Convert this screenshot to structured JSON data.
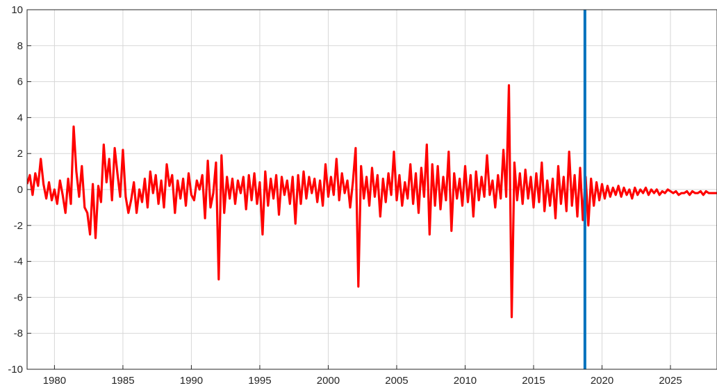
{
  "chart_data": {
    "type": "line",
    "title": "",
    "xlabel": "",
    "ylabel": "",
    "xlim": [
      1978.0,
      2028.4
    ],
    "ylim": [
      -10,
      10
    ],
    "x_ticks": [
      1980,
      1985,
      1990,
      1995,
      2000,
      2005,
      2010,
      2015,
      2020,
      2025
    ],
    "y_ticks": [
      -10,
      -8,
      -6,
      -4,
      -2,
      0,
      2,
      4,
      6,
      8,
      10
    ],
    "grid": true,
    "series": [
      {
        "color": "#ff0000",
        "points": [
          [
            1978.0,
            0.3
          ],
          [
            1978.2,
            0.8
          ],
          [
            1978.4,
            -0.3
          ],
          [
            1978.6,
            0.9
          ],
          [
            1978.8,
            0.2
          ],
          [
            1979.0,
            1.7
          ],
          [
            1979.2,
            0.3
          ],
          [
            1979.4,
            -0.5
          ],
          [
            1979.6,
            0.4
          ],
          [
            1979.8,
            -0.6
          ],
          [
            1980.0,
            0.0
          ],
          [
            1980.2,
            -0.8
          ],
          [
            1980.4,
            0.5
          ],
          [
            1980.6,
            -0.3
          ],
          [
            1980.8,
            -1.3
          ],
          [
            1981.0,
            0.6
          ],
          [
            1981.2,
            -0.8
          ],
          [
            1981.4,
            3.5
          ],
          [
            1981.6,
            1.0
          ],
          [
            1981.8,
            -0.4
          ],
          [
            1982.0,
            1.3
          ],
          [
            1982.2,
            -1.0
          ],
          [
            1982.4,
            -1.3
          ],
          [
            1982.6,
            -2.5
          ],
          [
            1982.8,
            0.3
          ],
          [
            1983.0,
            -2.7
          ],
          [
            1983.2,
            0.2
          ],
          [
            1983.4,
            -0.7
          ],
          [
            1983.6,
            2.5
          ],
          [
            1983.8,
            0.4
          ],
          [
            1984.0,
            1.7
          ],
          [
            1984.2,
            -0.6
          ],
          [
            1984.4,
            2.3
          ],
          [
            1984.6,
            0.9
          ],
          [
            1984.8,
            -0.4
          ],
          [
            1985.0,
            2.2
          ],
          [
            1985.2,
            -0.4
          ],
          [
            1985.4,
            -1.3
          ],
          [
            1985.6,
            -0.6
          ],
          [
            1985.8,
            0.4
          ],
          [
            1986.0,
            -1.3
          ],
          [
            1986.2,
            0.0
          ],
          [
            1986.4,
            -0.7
          ],
          [
            1986.6,
            0.6
          ],
          [
            1986.8,
            -1.0
          ],
          [
            1987.0,
            1.0
          ],
          [
            1987.2,
            -0.2
          ],
          [
            1987.4,
            0.8
          ],
          [
            1987.6,
            -0.8
          ],
          [
            1987.8,
            0.5
          ],
          [
            1988.0,
            -1.0
          ],
          [
            1988.2,
            1.4
          ],
          [
            1988.4,
            0.2
          ],
          [
            1988.6,
            0.8
          ],
          [
            1988.8,
            -1.3
          ],
          [
            1989.0,
            0.5
          ],
          [
            1989.2,
            -0.5
          ],
          [
            1989.4,
            0.6
          ],
          [
            1989.6,
            -0.9
          ],
          [
            1989.8,
            0.9
          ],
          [
            1990.0,
            -0.3
          ],
          [
            1990.2,
            -0.6
          ],
          [
            1990.4,
            0.5
          ],
          [
            1990.6,
            0.0
          ],
          [
            1990.8,
            0.8
          ],
          [
            1991.0,
            -1.6
          ],
          [
            1991.2,
            1.6
          ],
          [
            1991.4,
            -1.0
          ],
          [
            1991.6,
            -0.2
          ],
          [
            1991.8,
            1.5
          ],
          [
            1992.0,
            -5.0
          ],
          [
            1992.2,
            1.9
          ],
          [
            1992.4,
            -1.3
          ],
          [
            1992.6,
            0.7
          ],
          [
            1992.8,
            -0.5
          ],
          [
            1993.0,
            0.6
          ],
          [
            1993.2,
            -0.8
          ],
          [
            1993.4,
            0.5
          ],
          [
            1993.6,
            -0.2
          ],
          [
            1993.8,
            0.7
          ],
          [
            1994.0,
            -1.1
          ],
          [
            1994.2,
            0.8
          ],
          [
            1994.4,
            -0.6
          ],
          [
            1994.6,
            0.9
          ],
          [
            1994.8,
            -0.8
          ],
          [
            1995.0,
            0.4
          ],
          [
            1995.2,
            -2.5
          ],
          [
            1995.4,
            1.0
          ],
          [
            1995.6,
            -0.9
          ],
          [
            1995.8,
            0.6
          ],
          [
            1996.0,
            -0.5
          ],
          [
            1996.2,
            0.8
          ],
          [
            1996.4,
            -1.4
          ],
          [
            1996.6,
            0.7
          ],
          [
            1996.8,
            -0.3
          ],
          [
            1997.0,
            0.5
          ],
          [
            1997.2,
            -0.8
          ],
          [
            1997.4,
            0.7
          ],
          [
            1997.6,
            -1.9
          ],
          [
            1997.8,
            0.8
          ],
          [
            1998.0,
            -0.8
          ],
          [
            1998.2,
            1.0
          ],
          [
            1998.4,
            -0.5
          ],
          [
            1998.6,
            0.7
          ],
          [
            1998.8,
            -0.2
          ],
          [
            1999.0,
            0.6
          ],
          [
            1999.2,
            -0.7
          ],
          [
            1999.4,
            0.5
          ],
          [
            1999.6,
            -0.9
          ],
          [
            1999.8,
            1.4
          ],
          [
            2000.0,
            -0.4
          ],
          [
            2000.2,
            0.7
          ],
          [
            2000.4,
            -0.3
          ],
          [
            2000.6,
            1.7
          ],
          [
            2000.8,
            -0.6
          ],
          [
            2001.0,
            0.9
          ],
          [
            2001.2,
            -0.2
          ],
          [
            2001.4,
            0.5
          ],
          [
            2001.6,
            -1.0
          ],
          [
            2001.8,
            0.4
          ],
          [
            2002.0,
            2.3
          ],
          [
            2002.2,
            -5.4
          ],
          [
            2002.4,
            1.3
          ],
          [
            2002.6,
            -0.5
          ],
          [
            2002.8,
            0.7
          ],
          [
            2003.0,
            -0.9
          ],
          [
            2003.2,
            1.2
          ],
          [
            2003.4,
            -0.4
          ],
          [
            2003.6,
            0.8
          ],
          [
            2003.8,
            -1.5
          ],
          [
            2004.0,
            0.6
          ],
          [
            2004.2,
            -0.7
          ],
          [
            2004.4,
            0.9
          ],
          [
            2004.6,
            -0.3
          ],
          [
            2004.8,
            2.1
          ],
          [
            2005.0,
            -0.6
          ],
          [
            2005.2,
            0.8
          ],
          [
            2005.4,
            -0.9
          ],
          [
            2005.6,
            0.4
          ],
          [
            2005.8,
            -0.5
          ],
          [
            2006.0,
            1.4
          ],
          [
            2006.2,
            -0.8
          ],
          [
            2006.4,
            0.9
          ],
          [
            2006.6,
            -1.3
          ],
          [
            2006.8,
            1.2
          ],
          [
            2007.0,
            -0.4
          ],
          [
            2007.2,
            2.5
          ],
          [
            2007.4,
            -2.5
          ],
          [
            2007.6,
            1.4
          ],
          [
            2007.8,
            -0.9
          ],
          [
            2008.0,
            1.3
          ],
          [
            2008.2,
            -1.1
          ],
          [
            2008.4,
            0.7
          ],
          [
            2008.6,
            -0.6
          ],
          [
            2008.8,
            2.1
          ],
          [
            2009.0,
            -2.3
          ],
          [
            2009.2,
            0.9
          ],
          [
            2009.4,
            -0.5
          ],
          [
            2009.6,
            0.6
          ],
          [
            2009.8,
            -0.9
          ],
          [
            2010.0,
            1.3
          ],
          [
            2010.2,
            -0.7
          ],
          [
            2010.4,
            0.8
          ],
          [
            2010.6,
            -1.5
          ],
          [
            2010.8,
            1.0
          ],
          [
            2011.0,
            -0.6
          ],
          [
            2011.2,
            0.7
          ],
          [
            2011.4,
            -0.4
          ],
          [
            2011.6,
            1.9
          ],
          [
            2011.8,
            -0.3
          ],
          [
            2012.0,
            0.5
          ],
          [
            2012.2,
            -1.0
          ],
          [
            2012.4,
            0.8
          ],
          [
            2012.6,
            -0.5
          ],
          [
            2012.8,
            2.2
          ],
          [
            2013.0,
            -0.4
          ],
          [
            2013.2,
            5.8
          ],
          [
            2013.4,
            -7.1
          ],
          [
            2013.6,
            1.5
          ],
          [
            2013.8,
            -0.6
          ],
          [
            2014.0,
            0.9
          ],
          [
            2014.2,
            -0.8
          ],
          [
            2014.4,
            1.1
          ],
          [
            2014.6,
            -0.5
          ],
          [
            2014.8,
            0.7
          ],
          [
            2015.0,
            -1.0
          ],
          [
            2015.2,
            0.9
          ],
          [
            2015.4,
            -0.7
          ],
          [
            2015.6,
            1.5
          ],
          [
            2015.8,
            -1.2
          ],
          [
            2016.0,
            0.5
          ],
          [
            2016.2,
            -0.9
          ],
          [
            2016.4,
            0.6
          ],
          [
            2016.6,
            -1.6
          ],
          [
            2016.8,
            1.3
          ],
          [
            2017.0,
            -0.8
          ],
          [
            2017.2,
            0.7
          ],
          [
            2017.4,
            -1.2
          ],
          [
            2017.6,
            2.1
          ],
          [
            2017.8,
            -0.9
          ],
          [
            2018.0,
            0.8
          ],
          [
            2018.2,
            -1.5
          ],
          [
            2018.4,
            1.2
          ],
          [
            2018.6,
            -1.7
          ],
          [
            2018.8,
            0.7
          ],
          [
            2019.0,
            -2.0
          ],
          [
            2019.2,
            0.6
          ],
          [
            2019.4,
            -0.9
          ],
          [
            2019.6,
            0.4
          ],
          [
            2019.8,
            -0.6
          ],
          [
            2020.0,
            0.3
          ],
          [
            2020.2,
            -0.5
          ],
          [
            2020.4,
            0.2
          ],
          [
            2020.6,
            -0.4
          ],
          [
            2020.8,
            0.1
          ],
          [
            2021.0,
            -0.3
          ],
          [
            2021.2,
            0.2
          ],
          [
            2021.4,
            -0.4
          ],
          [
            2021.6,
            0.1
          ],
          [
            2021.8,
            -0.3
          ],
          [
            2022.0,
            0.0
          ],
          [
            2022.2,
            -0.5
          ],
          [
            2022.4,
            0.1
          ],
          [
            2022.6,
            -0.3
          ],
          [
            2022.8,
            0.0
          ],
          [
            2023.0,
            -0.2
          ],
          [
            2023.2,
            0.1
          ],
          [
            2023.4,
            -0.3
          ],
          [
            2023.6,
            0.0
          ],
          [
            2023.8,
            -0.2
          ],
          [
            2024.0,
            0.0
          ],
          [
            2024.2,
            -0.3
          ],
          [
            2024.4,
            -0.1
          ],
          [
            2024.6,
            -0.2
          ],
          [
            2024.8,
            0.0
          ],
          [
            2025.0,
            -0.1
          ],
          [
            2025.2,
            -0.2
          ],
          [
            2025.4,
            -0.1
          ],
          [
            2025.6,
            -0.3
          ],
          [
            2025.8,
            -0.2
          ],
          [
            2026.0,
            -0.2
          ],
          [
            2026.2,
            -0.1
          ],
          [
            2026.4,
            -0.3
          ],
          [
            2026.6,
            -0.1
          ],
          [
            2026.8,
            -0.2
          ],
          [
            2027.0,
            -0.2
          ],
          [
            2027.2,
            -0.1
          ],
          [
            2027.4,
            -0.3
          ],
          [
            2027.6,
            -0.1
          ],
          [
            2027.8,
            -0.2
          ],
          [
            2028.0,
            -0.2
          ],
          [
            2028.4,
            -0.2
          ]
        ]
      }
    ],
    "vertical_marker": {
      "x": 2018.75,
      "color": "#0072bd"
    }
  }
}
